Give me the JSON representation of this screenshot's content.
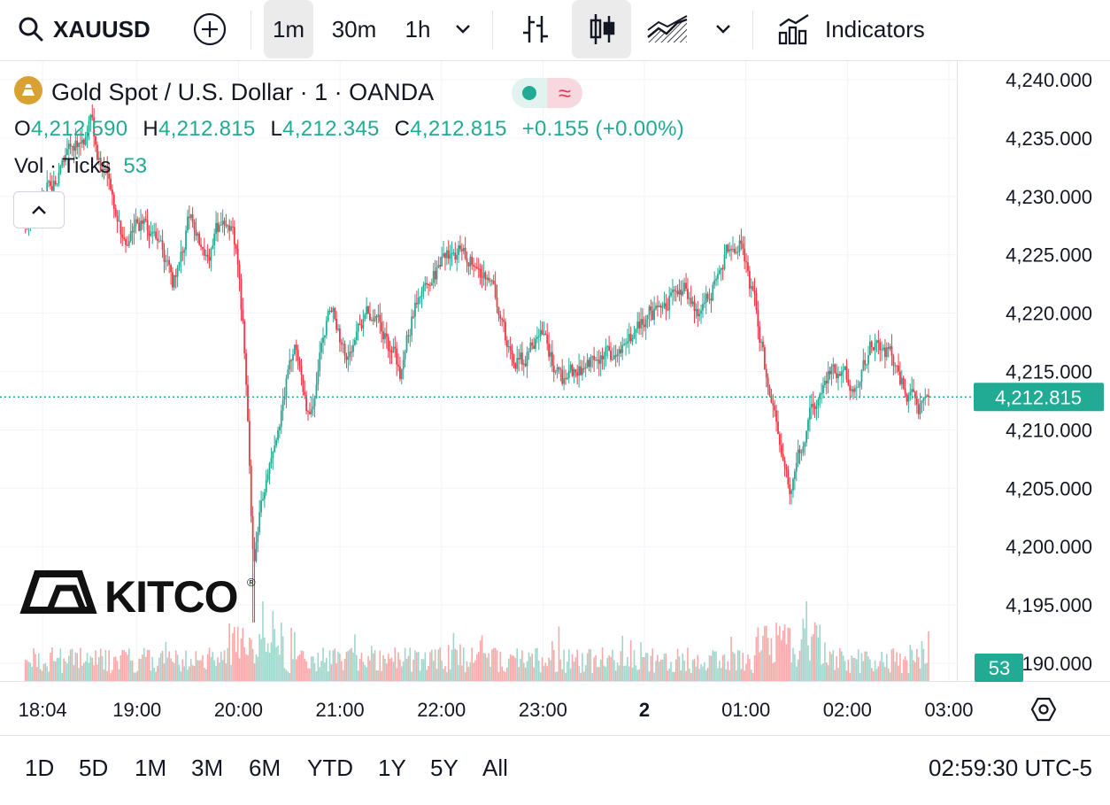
{
  "toolbar": {
    "symbol": "XAUUSD",
    "intervals": [
      "1m",
      "30m",
      "1h"
    ],
    "active_interval": "1m",
    "indicators_label": "Indicators"
  },
  "legend": {
    "title": "Gold Spot / U.S. Dollar · 1 · OANDA",
    "o_label": "O",
    "o_value": "4,212.590",
    "h_label": "H",
    "h_value": "4,212.815",
    "l_label": "L",
    "l_value": "4,212.345",
    "c_label": "C",
    "c_value": "4,212.815",
    "change": "+0.155 (+0.00%)",
    "vol_label": "Vol · Ticks",
    "vol_value": "53",
    "wave_symbol": "≈"
  },
  "watermark": {
    "text": "KITCO",
    "registered": "®"
  },
  "price_axis": {
    "labels": [
      "4,240.000",
      "4,235.000",
      "4,230.000",
      "4,225.000",
      "4,220.000",
      "4,215.000",
      "4,210.000",
      "4,205.000",
      "4,200.000",
      "4,195.000",
      "4,190.000"
    ],
    "current_price": "4,212.815",
    "current_volume": "53"
  },
  "time_axis": {
    "labels": [
      "18:04",
      "19:00",
      "20:00",
      "21:00",
      "22:00",
      "23:00",
      "2",
      "01:00",
      "02:00",
      "03:00"
    ]
  },
  "ranges": [
    "1D",
    "5D",
    "1M",
    "3M",
    "6M",
    "YTD",
    "1Y",
    "5Y",
    "All"
  ],
  "clock": "02:59:30 UTC-5",
  "colors": {
    "up": "#22ab94",
    "down": "#f23645",
    "up_vol": "#9fd6cc",
    "down_vol": "#f7a9a7"
  },
  "chart_data": {
    "type": "candlestick",
    "title": "Gold Spot / U.S. Dollar · 1 · OANDA",
    "interval": "1m",
    "ylim": [
      4187.5,
      4242
    ],
    "x_range_hours": [
      18.0,
      3.0
    ],
    "last_close": 4212.815,
    "path_points": [
      [
        18.0,
        4228.0
      ],
      [
        18.3,
        4234.0
      ],
      [
        18.55,
        4236.0
      ],
      [
        18.7,
        4231.0
      ],
      [
        18.85,
        4226.0
      ],
      [
        19.0,
        4228.0
      ],
      [
        19.15,
        4227.0
      ],
      [
        19.35,
        4222.0
      ],
      [
        19.5,
        4228.0
      ],
      [
        19.7,
        4225.0
      ],
      [
        19.9,
        4229.0
      ],
      [
        19.97,
        4226.0
      ],
      [
        20.05,
        4218.0
      ],
      [
        20.1,
        4209.0
      ],
      [
        20.15,
        4198.0
      ],
      [
        20.25,
        4205.0
      ],
      [
        20.45,
        4213.0
      ],
      [
        20.55,
        4218.0
      ],
      [
        20.7,
        4211.0
      ],
      [
        20.8,
        4216.0
      ],
      [
        20.9,
        4220.0
      ],
      [
        21.1,
        4216.0
      ],
      [
        21.3,
        4220.0
      ],
      [
        21.6,
        4215.0
      ],
      [
        21.8,
        4223.0
      ],
      [
        22.0,
        4224.0
      ],
      [
        22.2,
        4226.0
      ],
      [
        22.45,
        4223.0
      ],
      [
        22.65,
        4217.0
      ],
      [
        22.8,
        4216.0
      ],
      [
        23.0,
        4218.0
      ],
      [
        23.2,
        4214.0
      ],
      [
        23.5,
        4216.0
      ],
      [
        23.8,
        4217.0
      ],
      [
        24.1,
        4220.0
      ],
      [
        24.4,
        4223.0
      ],
      [
        24.55,
        4220.0
      ],
      [
        24.8,
        4225.0
      ],
      [
        24.95,
        4226.0
      ],
      [
        25.1,
        4220.0
      ],
      [
        25.25,
        4212.0
      ],
      [
        25.45,
        4205.0
      ],
      [
        25.6,
        4210.0
      ],
      [
        25.8,
        4215.0
      ],
      [
        26.05,
        4214.0
      ],
      [
        26.3,
        4219.0
      ],
      [
        26.5,
        4215.0
      ],
      [
        26.7,
        4211.0
      ],
      [
        26.8,
        4212.8
      ]
    ],
    "volume_range": [
      0,
      85
    ],
    "series": [
      {
        "name": "Gold Spot / U.S. Dollar",
        "kind": "candles"
      },
      {
        "name": "Vol · Ticks",
        "kind": "volume",
        "last_value": 53
      }
    ]
  }
}
